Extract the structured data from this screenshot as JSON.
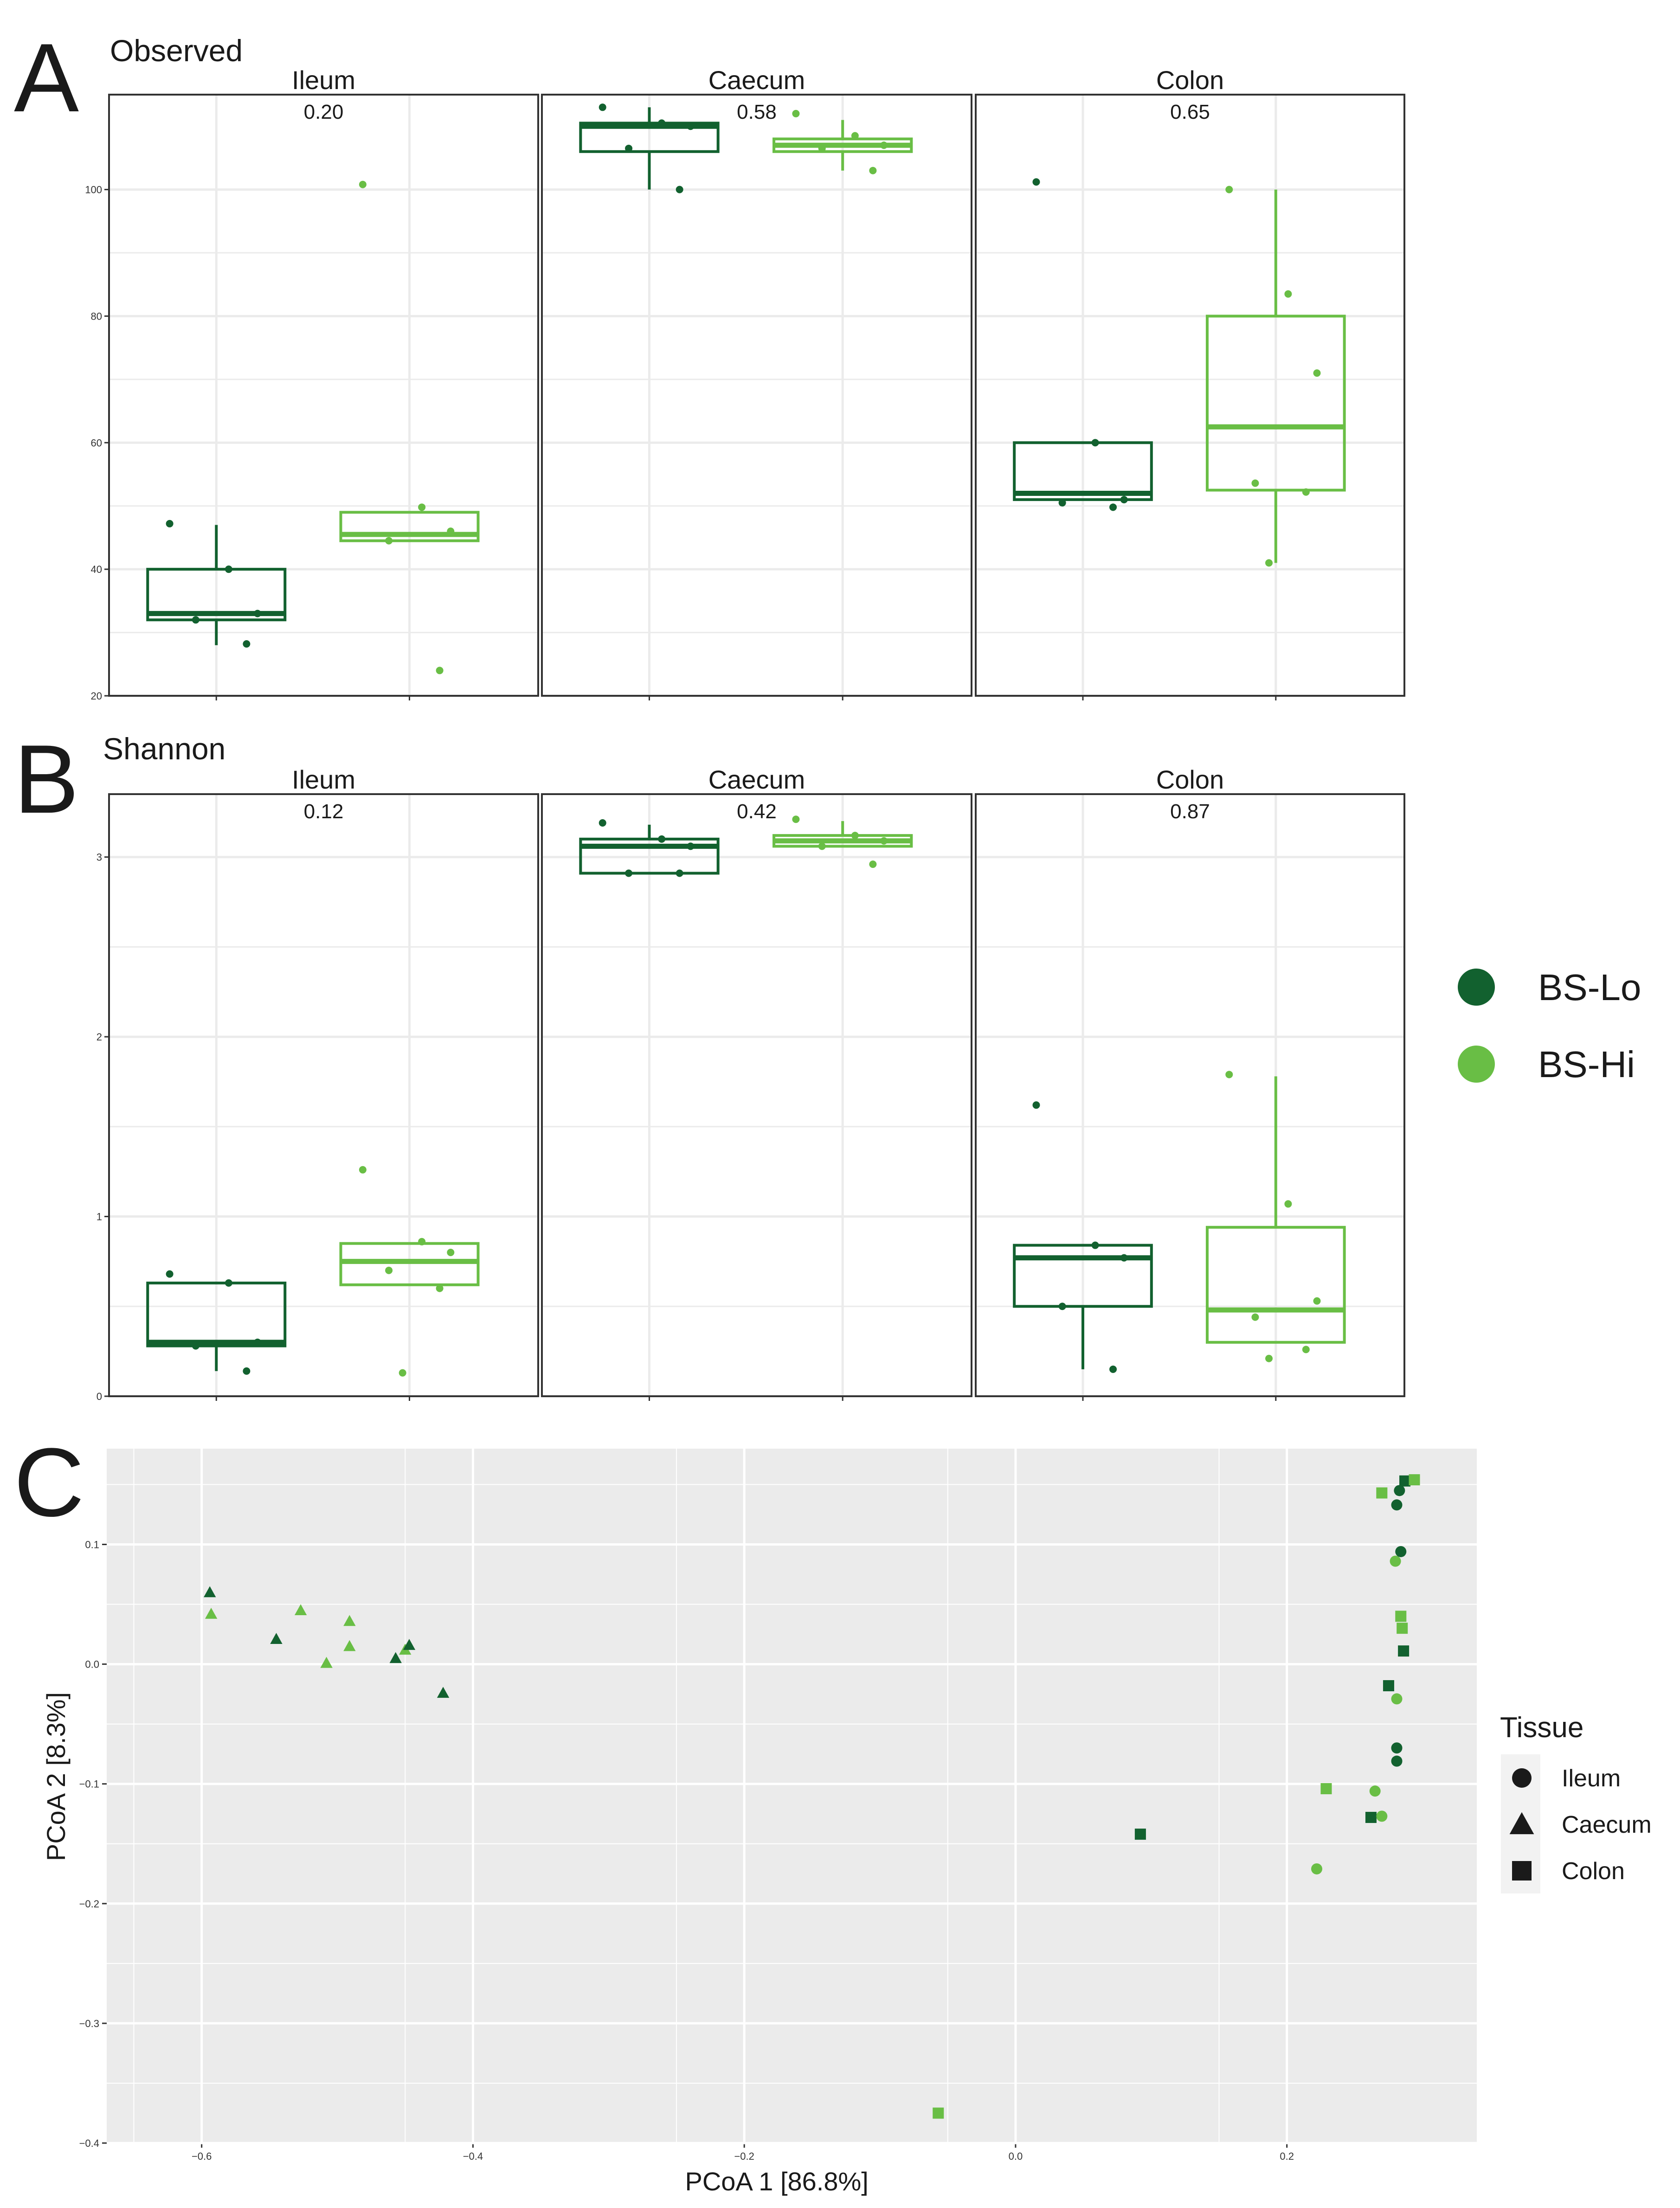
{
  "colors": {
    "bs_lo": "#12612F",
    "bs_hi": "#69BE45",
    "panel_grid": "#EBEBEB",
    "pcoa_bg": "#EBEBEB",
    "pcoa_grid": "#FFFFFF",
    "dark": "#1A1A1A"
  },
  "panel_labels": {
    "a": "A",
    "b": "B",
    "c": "C"
  },
  "legend_groups": {
    "items": [
      "BS-Lo",
      "BS-Hi"
    ]
  },
  "legend_tissue": {
    "title": "Tissue",
    "items": [
      "Ileum",
      "Caecum",
      "Colon"
    ]
  },
  "chart_data": [
    {
      "id": "A",
      "type": "box",
      "title": "Observed",
      "ylim": [
        20,
        115
      ],
      "yticks": [
        20,
        40,
        60,
        80,
        100
      ],
      "facets": [
        {
          "name": "Ileum",
          "pvalue": "0.20",
          "groups": [
            {
              "name": "BS-Lo",
              "q1": 32,
              "median": 33,
              "q3": 40,
              "whisker_low": 28,
              "whisker_high": 47,
              "points": [
                47.2,
                40,
                33,
                32,
                28.2
              ]
            },
            {
              "name": "BS-Hi",
              "q1": 44.5,
              "median": 45.5,
              "q3": 49,
              "whisker_low": 44.5,
              "whisker_high": 49,
              "points": [
                100.8,
                49.8,
                46,
                44.5,
                24
              ]
            }
          ]
        },
        {
          "name": "Caecum",
          "pvalue": "0.58",
          "groups": [
            {
              "name": "BS-Lo",
              "q1": 106,
              "median": 110,
              "q3": 110.5,
              "whisker_low": 100,
              "whisker_high": 113,
              "points": [
                113,
                110.5,
                110,
                106.5,
                100
              ]
            },
            {
              "name": "BS-Hi",
              "q1": 106,
              "median": 107,
              "q3": 108,
              "whisker_low": 103,
              "whisker_high": 111,
              "points": [
                112,
                108.5,
                107,
                106.5,
                103
              ]
            }
          ]
        },
        {
          "name": "Colon",
          "pvalue": "0.65",
          "groups": [
            {
              "name": "BS-Lo",
              "q1": 51,
              "median": 52,
              "q3": 60,
              "whisker_low": 51,
              "whisker_high": 60,
              "points": [
                101.2,
                60,
                51,
                50.5,
                49.8
              ]
            },
            {
              "name": "BS-Hi",
              "q1": 52.5,
              "median": 62.5,
              "q3": 80,
              "whisker_low": 41,
              "whisker_high": 100,
              "points": [
                100,
                83.5,
                71,
                53.6,
                52.2,
                41
              ]
            }
          ]
        }
      ]
    },
    {
      "id": "B",
      "type": "box",
      "title": "Shannon",
      "ylim": [
        0,
        3.35
      ],
      "yticks": [
        0,
        1,
        2,
        3
      ],
      "facets": [
        {
          "name": "Ileum",
          "pvalue": "0.12",
          "groups": [
            {
              "name": "BS-Lo",
              "q1": 0.28,
              "median": 0.3,
              "q3": 0.63,
              "whisker_low": 0.14,
              "whisker_high": 0.63,
              "points": [
                0.68,
                0.63,
                0.3,
                0.28,
                0.14
              ]
            },
            {
              "name": "BS-Hi",
              "q1": 0.62,
              "median": 0.75,
              "q3": 0.85,
              "whisker_low": 0.62,
              "whisker_high": 0.85,
              "points": [
                1.26,
                0.86,
                0.8,
                0.7,
                0.6,
                0.13
              ]
            }
          ]
        },
        {
          "name": "Caecum",
          "pvalue": "0.42",
          "groups": [
            {
              "name": "BS-Lo",
              "q1": 2.91,
              "median": 3.06,
              "q3": 3.1,
              "whisker_low": 2.91,
              "whisker_high": 3.18,
              "points": [
                3.19,
                3.1,
                3.06,
                2.91,
                2.91
              ]
            },
            {
              "name": "BS-Hi",
              "q1": 3.06,
              "median": 3.09,
              "q3": 3.12,
              "whisker_low": 3.06,
              "whisker_high": 3.2,
              "points": [
                3.21,
                3.12,
                3.09,
                3.06,
                2.96
              ]
            }
          ]
        },
        {
          "name": "Colon",
          "pvalue": "0.87",
          "groups": [
            {
              "name": "BS-Lo",
              "q1": 0.5,
              "median": 0.77,
              "q3": 0.84,
              "whisker_low": 0.15,
              "whisker_high": 0.84,
              "points": [
                1.62,
                0.84,
                0.77,
                0.5,
                0.15
              ]
            },
            {
              "name": "BS-Hi",
              "q1": 0.3,
              "median": 0.48,
              "q3": 0.94,
              "whisker_low": 0.3,
              "whisker_high": 1.78,
              "points": [
                1.79,
                1.07,
                0.53,
                0.44,
                0.26,
                0.21
              ]
            }
          ]
        }
      ]
    },
    {
      "id": "C",
      "type": "scatter",
      "xlabel": "PCoA 1   [86.8%]",
      "ylabel": "PCoA 2   [8.3%]",
      "xlim": [
        -0.67,
        0.34
      ],
      "ylim": [
        -0.4,
        0.18
      ],
      "xticks": [
        -0.6,
        -0.4,
        -0.2,
        0.0,
        0.2
      ],
      "xtick_labels": [
        "−0.6",
        "−0.4",
        "−0.2",
        "0.0",
        "0.2"
      ],
      "yticks": [
        -0.4,
        -0.3,
        -0.2,
        -0.1,
        0.0,
        0.1
      ],
      "ytick_labels": [
        "−0.4",
        "−0.3",
        "−0.2",
        "−0.1",
        "0.0",
        "0.1"
      ],
      "points": [
        {
          "x": -0.594,
          "y": 0.06,
          "group": "BS-Lo",
          "tissue": "Caecum"
        },
        {
          "x": -0.593,
          "y": 0.042,
          "group": "BS-Hi",
          "tissue": "Caecum"
        },
        {
          "x": -0.545,
          "y": 0.021,
          "group": "BS-Lo",
          "tissue": "Caecum"
        },
        {
          "x": -0.527,
          "y": 0.045,
          "group": "BS-Hi",
          "tissue": "Caecum"
        },
        {
          "x": -0.508,
          "y": 0.001,
          "group": "BS-Hi",
          "tissue": "Caecum"
        },
        {
          "x": -0.491,
          "y": 0.036,
          "group": "BS-Hi",
          "tissue": "Caecum"
        },
        {
          "x": -0.491,
          "y": 0.015,
          "group": "BS-Hi",
          "tissue": "Caecum"
        },
        {
          "x": -0.457,
          "y": 0.005,
          "group": "BS-Lo",
          "tissue": "Caecum"
        },
        {
          "x": -0.45,
          "y": 0.012,
          "group": "BS-Hi",
          "tissue": "Caecum"
        },
        {
          "x": -0.447,
          "y": 0.016,
          "group": "BS-Lo",
          "tissue": "Caecum"
        },
        {
          "x": -0.422,
          "y": -0.024,
          "group": "BS-Lo",
          "tissue": "Caecum"
        },
        {
          "x": -0.057,
          "y": -0.375,
          "group": "BS-Hi",
          "tissue": "Colon"
        },
        {
          "x": 0.092,
          "y": -0.142,
          "group": "BS-Lo",
          "tissue": "Colon"
        },
        {
          "x": 0.222,
          "y": -0.171,
          "group": "BS-Hi",
          "tissue": "Ileum"
        },
        {
          "x": 0.229,
          "y": -0.104,
          "group": "BS-Hi",
          "tissue": "Colon"
        },
        {
          "x": 0.265,
          "y": -0.106,
          "group": "BS-Hi",
          "tissue": "Ileum"
        },
        {
          "x": 0.262,
          "y": -0.128,
          "group": "BS-Lo",
          "tissue": "Colon"
        },
        {
          "x": 0.27,
          "y": -0.127,
          "group": "BS-Hi",
          "tissue": "Ileum"
        },
        {
          "x": 0.27,
          "y": 0.143,
          "group": "BS-Hi",
          "tissue": "Colon"
        },
        {
          "x": 0.275,
          "y": -0.018,
          "group": "BS-Lo",
          "tissue": "Colon"
        },
        {
          "x": 0.28,
          "y": 0.086,
          "group": "BS-Hi",
          "tissue": "Ileum"
        },
        {
          "x": 0.281,
          "y": -0.07,
          "group": "BS-Lo",
          "tissue": "Ileum"
        },
        {
          "x": 0.281,
          "y": -0.081,
          "group": "BS-Lo",
          "tissue": "Ileum"
        },
        {
          "x": 0.281,
          "y": -0.029,
          "group": "BS-Hi",
          "tissue": "Ileum"
        },
        {
          "x": 0.281,
          "y": 0.133,
          "group": "BS-Lo",
          "tissue": "Ileum"
        },
        {
          "x": 0.284,
          "y": 0.094,
          "group": "BS-Lo",
          "tissue": "Ileum"
        },
        {
          "x": 0.283,
          "y": 0.145,
          "group": "BS-Lo",
          "tissue": "Ileum"
        },
        {
          "x": 0.284,
          "y": 0.04,
          "group": "BS-Hi",
          "tissue": "Colon"
        },
        {
          "x": 0.285,
          "y": 0.03,
          "group": "BS-Hi",
          "tissue": "Colon"
        },
        {
          "x": 0.286,
          "y": 0.011,
          "group": "BS-Lo",
          "tissue": "Colon"
        },
        {
          "x": 0.287,
          "y": 0.153,
          "group": "BS-Lo",
          "tissue": "Colon"
        },
        {
          "x": 0.294,
          "y": 0.154,
          "group": "BS-Hi",
          "tissue": "Colon"
        }
      ]
    }
  ]
}
